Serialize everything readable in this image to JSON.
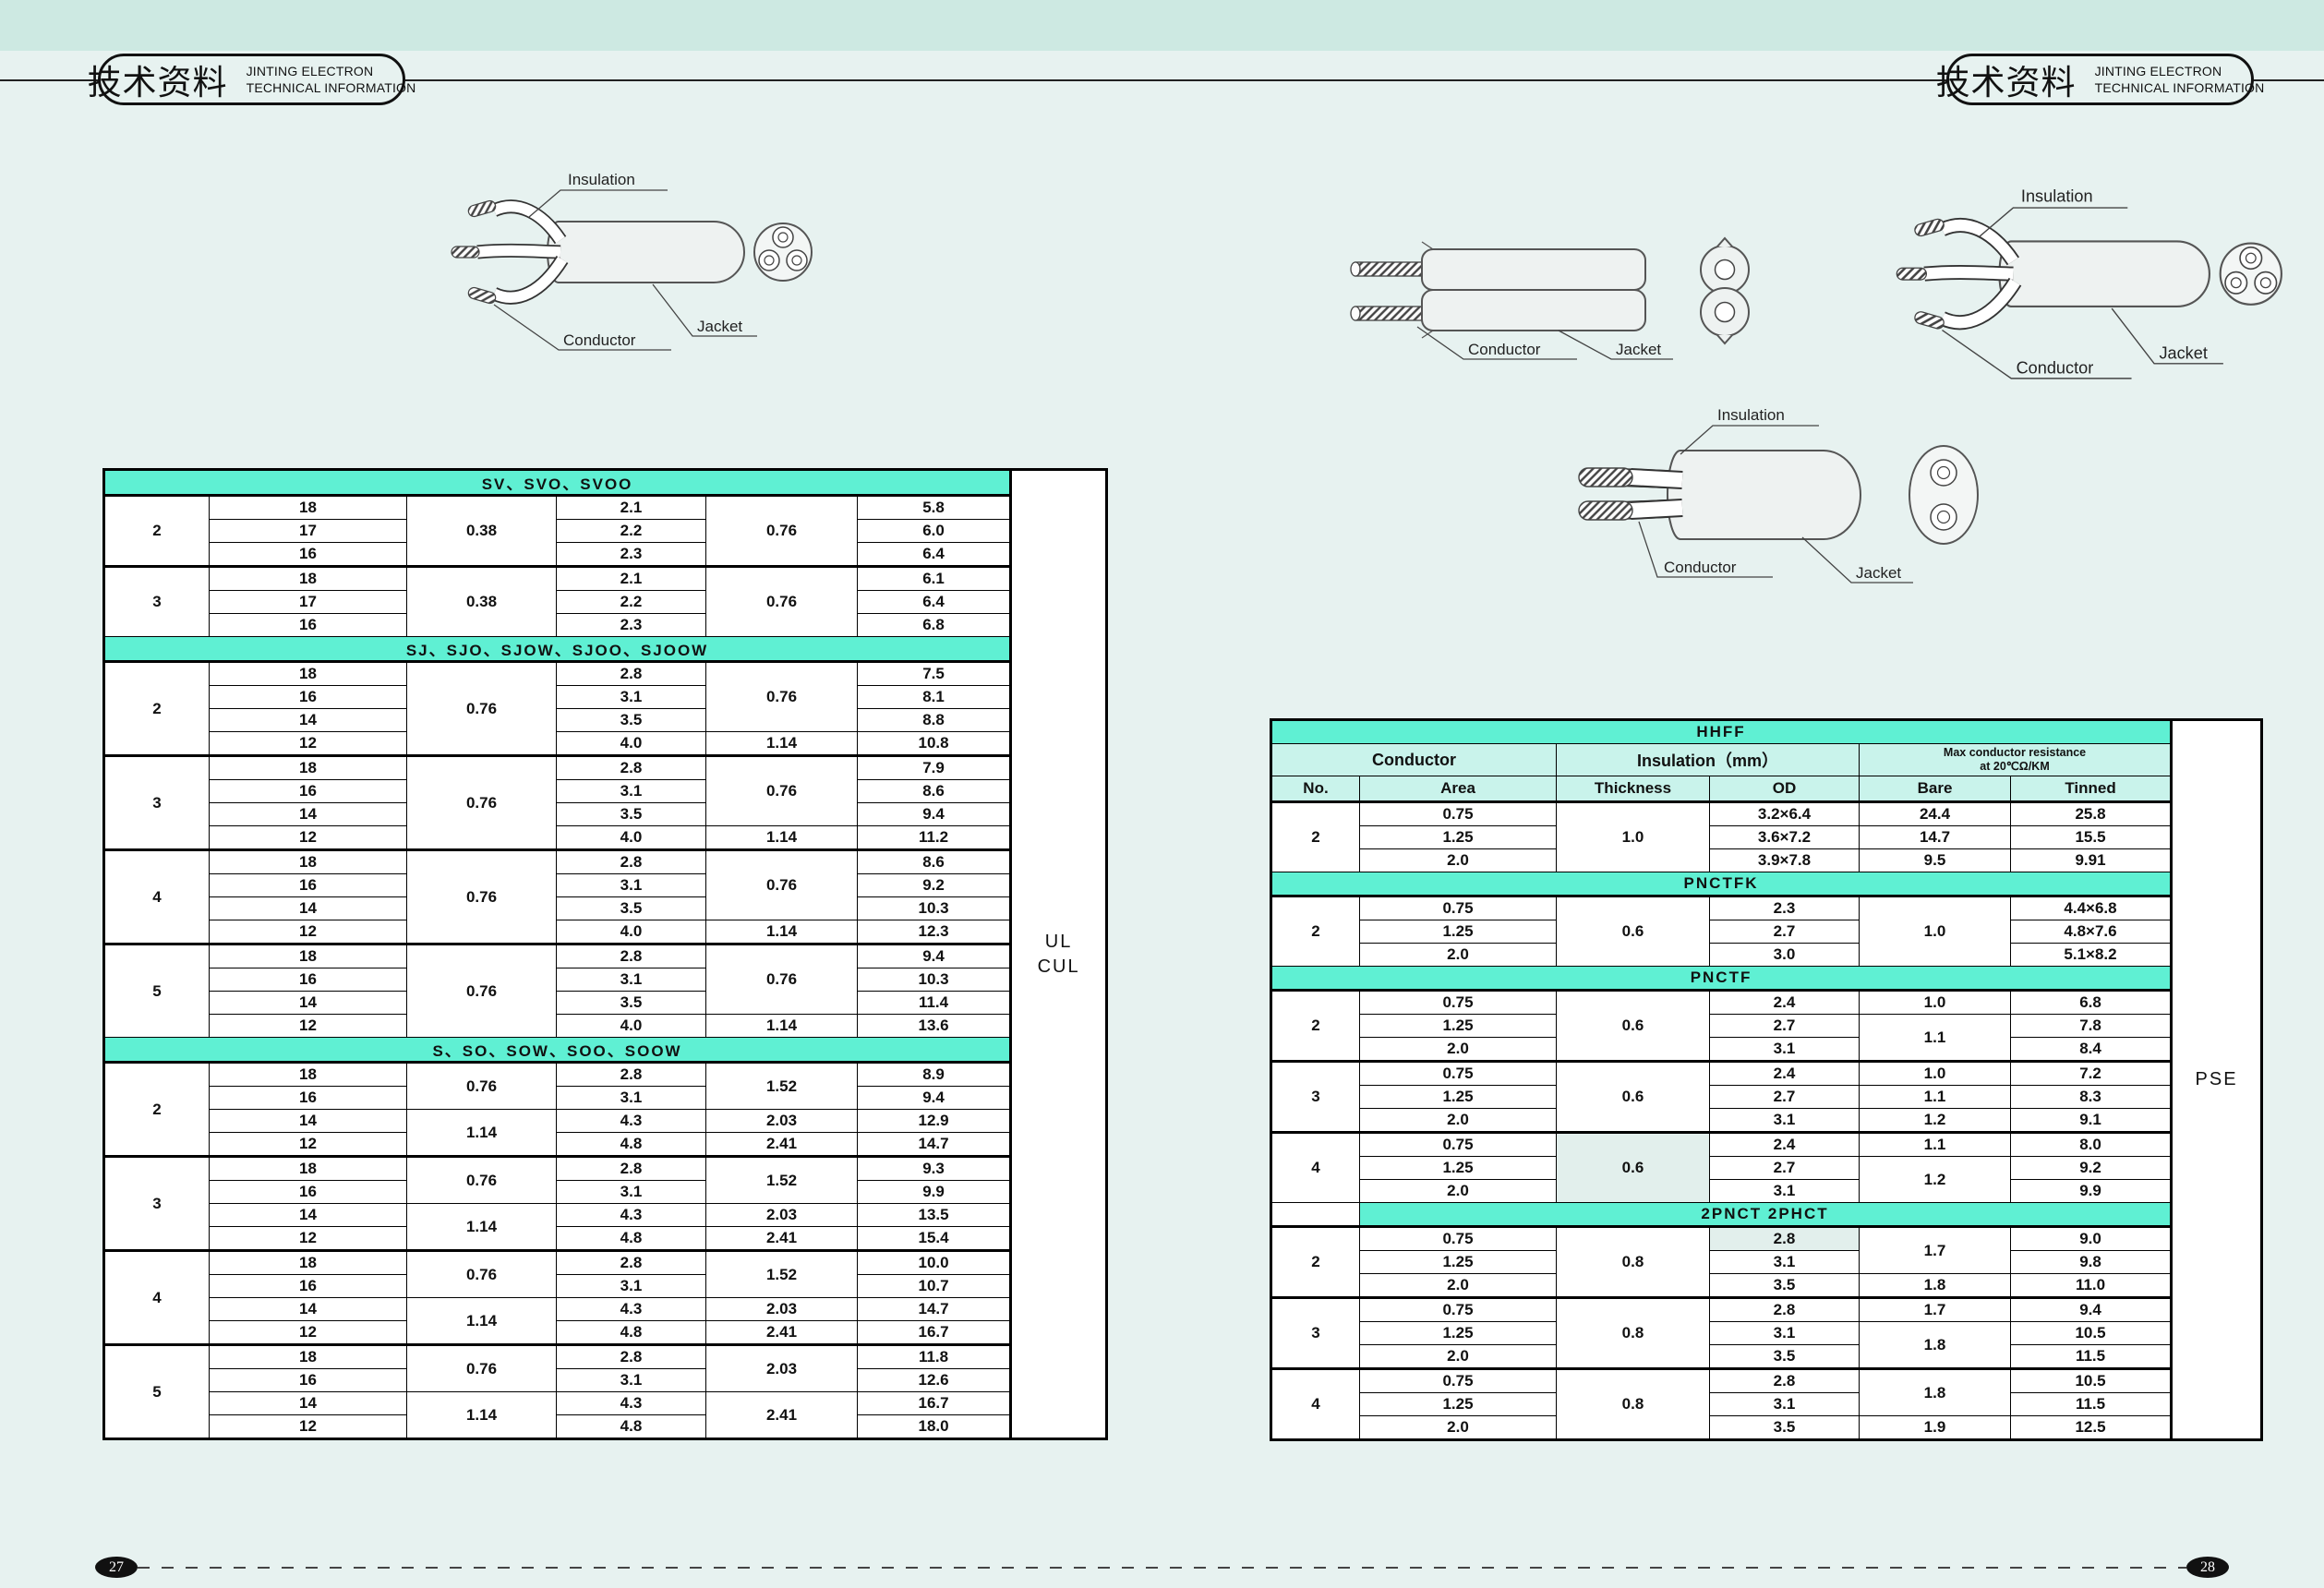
{
  "colors": {
    "accent": "#5ff0d3",
    "subheader": "#c9f3eb",
    "band": "#cde9e2",
    "page": "#e7f2f0",
    "tint": "#e2efec"
  },
  "header": {
    "zh": "技术资料",
    "en_line1": "JINTING ELECTRON",
    "en_line2": "TECHNICAL INFORMATION"
  },
  "labels": {
    "insulation": "Insulation",
    "conductor": "Conductor",
    "jacket": "Jacket"
  },
  "left_table": {
    "certs": [
      "UL",
      "CUL"
    ],
    "sections": [
      {
        "title": "SV、SVO、SVOO",
        "groups": [
          [
            [
              {
                "t": "2",
                "rs": 3
              },
              "18",
              {
                "t": "0.38",
                "rs": 3
              },
              "2.1",
              {
                "t": "0.76",
                "rs": 3
              },
              "5.8"
            ],
            [
              "17",
              "2.2",
              "6.0"
            ],
            [
              "16",
              "2.3",
              "6.4"
            ]
          ],
          [
            [
              {
                "t": "3",
                "rs": 3
              },
              "18",
              {
                "t": "0.38",
                "rs": 3
              },
              "2.1",
              {
                "t": "0.76",
                "rs": 3
              },
              "6.1"
            ],
            [
              "17",
              "2.2",
              "6.4"
            ],
            [
              "16",
              "2.3",
              "6.8"
            ]
          ]
        ]
      },
      {
        "title": "SJ、SJO、SJOW、SJOO、SJOOW",
        "groups": [
          [
            [
              {
                "t": "2",
                "rs": 4
              },
              "18",
              {
                "t": "0.76",
                "rs": 4
              },
              "2.8",
              {
                "t": "0.76",
                "rs": 3
              },
              "7.5"
            ],
            [
              "16",
              "3.1",
              "8.1"
            ],
            [
              "14",
              "3.5",
              "8.8"
            ],
            [
              "12",
              "4.0",
              "1.14",
              "10.8"
            ]
          ],
          [
            [
              {
                "t": "3",
                "rs": 4
              },
              "18",
              {
                "t": "0.76",
                "rs": 4
              },
              "2.8",
              {
                "t": "0.76",
                "rs": 3
              },
              "7.9"
            ],
            [
              "16",
              "3.1",
              "8.6"
            ],
            [
              "14",
              "3.5",
              "9.4"
            ],
            [
              "12",
              "4.0",
              "1.14",
              "11.2"
            ]
          ],
          [
            [
              {
                "t": "4",
                "rs": 4
              },
              "18",
              {
                "t": "0.76",
                "rs": 4
              },
              "2.8",
              {
                "t": "0.76",
                "rs": 3
              },
              "8.6"
            ],
            [
              "16",
              "3.1",
              "9.2"
            ],
            [
              "14",
              "3.5",
              "10.3"
            ],
            [
              "12",
              "4.0",
              "1.14",
              "12.3"
            ]
          ],
          [
            [
              {
                "t": "5",
                "rs": 4
              },
              "18",
              {
                "t": "0.76",
                "rs": 4
              },
              "2.8",
              {
                "t": "0.76",
                "rs": 3
              },
              "9.4"
            ],
            [
              "16",
              "3.1",
              "10.3"
            ],
            [
              "14",
              "3.5",
              "11.4"
            ],
            [
              "12",
              "4.0",
              "1.14",
              "13.6"
            ]
          ]
        ]
      },
      {
        "title": "S、SO、SOW、SOO、SOOW",
        "groups": [
          [
            [
              {
                "t": "2",
                "rs": 4
              },
              "18",
              {
                "t": "0.76",
                "rs": 2
              },
              "2.8",
              {
                "t": "1.52",
                "rs": 2
              },
              "8.9"
            ],
            [
              "16",
              "3.1",
              "9.4"
            ],
            [
              "14",
              {
                "t": "1.14",
                "rs": 2
              },
              "4.3",
              "2.03",
              "12.9"
            ],
            [
              "12",
              "4.8",
              "2.41",
              "14.7"
            ]
          ],
          [
            [
              {
                "t": "3",
                "rs": 4
              },
              "18",
              {
                "t": "0.76",
                "rs": 2
              },
              "2.8",
              {
                "t": "1.52",
                "rs": 2
              },
              "9.3"
            ],
            [
              "16",
              "3.1",
              "9.9"
            ],
            [
              "14",
              {
                "t": "1.14",
                "rs": 2
              },
              "4.3",
              "2.03",
              "13.5"
            ],
            [
              "12",
              "4.8",
              "2.41",
              "15.4"
            ]
          ],
          [
            [
              {
                "t": "4",
                "rs": 4
              },
              "18",
              {
                "t": "0.76",
                "rs": 2
              },
              "2.8",
              {
                "t": "1.52",
                "rs": 2
              },
              "10.0"
            ],
            [
              "16",
              "3.1",
              "10.7"
            ],
            [
              "14",
              {
                "t": "1.14",
                "rs": 2
              },
              "4.3",
              "2.03",
              "14.7"
            ],
            [
              "12",
              "4.8",
              "2.41",
              "16.7"
            ]
          ],
          [
            [
              {
                "t": "5",
                "rs": 4
              },
              "18",
              {
                "t": "0.76",
                "rs": 2
              },
              "2.8",
              {
                "t": "2.03",
                "rs": 2
              },
              "11.8"
            ],
            [
              "16",
              "3.1",
              "12.6"
            ],
            [
              "14",
              {
                "t": "1.14",
                "rs": 2
              },
              "4.3",
              {
                "t": "2.41",
                "rs": 2
              },
              "16.7"
            ],
            [
              "12",
              "4.8",
              "18.0"
            ]
          ]
        ]
      }
    ]
  },
  "right_table": {
    "cert": "PSE",
    "subheader": {
      "conductor": "Conductor",
      "insulation": "Insulation（mm）",
      "resistance": "Max conductor resistance\nat 20℃Ω/KM",
      "no": "No.",
      "area": "Area",
      "thickness": "Thickness",
      "od": "OD",
      "bare": "Bare",
      "tinned": "Tinned"
    },
    "sections": [
      {
        "title": "HHFF",
        "sub": true,
        "groups": [
          [
            [
              {
                "t": "2",
                "rs": 3
              },
              "0.75",
              {
                "t": "1.0",
                "rs": 3
              },
              "3.2×6.4",
              "24.4",
              "25.8"
            ],
            [
              "1.25",
              "3.6×7.2",
              "14.7",
              "15.5"
            ],
            [
              "2.0",
              "3.9×7.8",
              "9.5",
              "9.91"
            ]
          ]
        ]
      },
      {
        "title": "PNCTFK",
        "groups": [
          [
            [
              {
                "t": "2",
                "rs": 3
              },
              "0.75",
              {
                "t": "0.6",
                "rs": 3
              },
              "2.3",
              {
                "t": "1.0",
                "rs": 3
              },
              "4.4×6.8"
            ],
            [
              "1.25",
              "2.7",
              "4.8×7.6"
            ],
            [
              "2.0",
              "3.0",
              "5.1×8.2"
            ]
          ]
        ]
      },
      {
        "title": "PNCTF",
        "groups": [
          [
            [
              {
                "t": "2",
                "rs": 3
              },
              "0.75",
              {
                "t": "0.6",
                "rs": 3
              },
              "2.4",
              "1.0",
              "6.8"
            ],
            [
              "1.25",
              "2.7",
              {
                "t": "1.1",
                "rs": 2
              },
              "7.8"
            ],
            [
              "2.0",
              "3.1",
              "8.4"
            ]
          ],
          [
            [
              {
                "t": "3",
                "rs": 3
              },
              "0.75",
              {
                "t": "0.6",
                "rs": 3
              },
              "2.4",
              "1.0",
              "7.2"
            ],
            [
              "1.25",
              "2.7",
              "1.1",
              "8.3"
            ],
            [
              "2.0",
              "3.1",
              "1.2",
              "9.1"
            ]
          ],
          [
            [
              {
                "t": "4",
                "rs": 3
              },
              "0.75",
              {
                "t": "0.6",
                "rs": 3,
                "tint": true
              },
              "2.4",
              "1.1",
              "8.0"
            ],
            [
              "1.25",
              "2.7",
              {
                "t": "1.2",
                "rs": 2
              },
              "9.2"
            ],
            [
              "2.0",
              "3.1",
              "9.9"
            ]
          ]
        ]
      },
      {
        "title": "2PNCT  2PHCT",
        "indent": true,
        "groups": [
          [
            [
              {
                "t": "2",
                "rs": 3
              },
              "0.75",
              {
                "t": "0.8",
                "rs": 3
              },
              {
                "t": "2.8",
                "tint": true
              },
              {
                "t": "1.7",
                "rs": 2
              },
              "9.0"
            ],
            [
              "1.25",
              "3.1",
              "9.8"
            ],
            [
              "2.0",
              "3.5",
              "1.8",
              "11.0"
            ]
          ],
          [
            [
              {
                "t": "3",
                "rs": 3
              },
              "0.75",
              {
                "t": "0.8",
                "rs": 3
              },
              "2.8",
              "1.7",
              "9.4"
            ],
            [
              "1.25",
              "3.1",
              {
                "t": "1.8",
                "rs": 2
              },
              "10.5"
            ],
            [
              "2.0",
              "3.5",
              "11.5"
            ]
          ],
          [
            [
              {
                "t": "4",
                "rs": 3
              },
              "0.75",
              {
                "t": "0.8",
                "rs": 3
              },
              "2.8",
              {
                "t": "1.8",
                "rs": 2
              },
              "10.5"
            ],
            [
              "1.25",
              "3.1",
              "11.5"
            ],
            [
              "2.0",
              "3.5",
              "1.9",
              "12.5"
            ]
          ]
        ]
      }
    ]
  },
  "footer": {
    "left_page": "27",
    "right_page": "28"
  }
}
